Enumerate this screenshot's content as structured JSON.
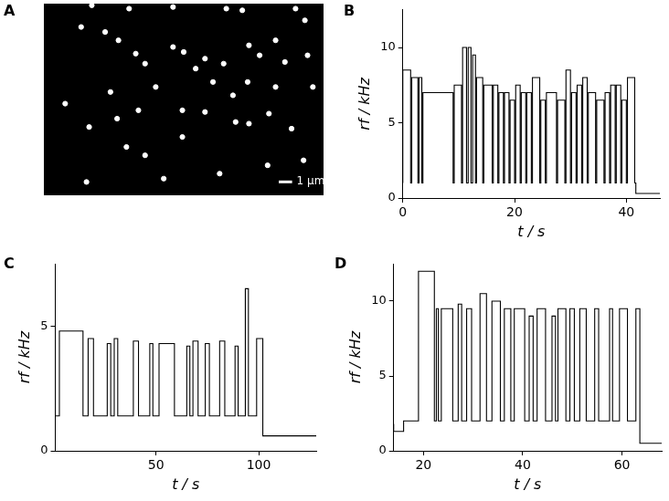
{
  "chart_data": [
    {
      "panel": "A",
      "type": "scatter",
      "color": "#ffffff",
      "marker": "circle",
      "grid": false,
      "tick_labels": false,
      "xlim": [
        0,
        21
      ],
      "ylim": [
        0,
        11.5
      ],
      "x": [
        3.6,
        6.4,
        9.7,
        13.7,
        14.9,
        18.9,
        19.6,
        2.8,
        4.6,
        5.6,
        6.9,
        7.6,
        9.7,
        10.5,
        12.1,
        13.5,
        15.4,
        16.2,
        17.4,
        18.1,
        19.8,
        20.2,
        17.4,
        15.3,
        14.2,
        12.7,
        11.4,
        8.4,
        5.0,
        1.6,
        3.4,
        5.5,
        7.1,
        10.4,
        12.1,
        14.4,
        16.9,
        15.4,
        6.2,
        7.6,
        10.4,
        9.0,
        13.2,
        19.5,
        16.8,
        3.2,
        18.6
      ],
      "values": [
        11.4,
        11.2,
        11.3,
        11.2,
        11.1,
        11.2,
        10.5,
        10.1,
        9.8,
        9.3,
        8.5,
        7.9,
        8.9,
        8.6,
        8.2,
        7.9,
        9.0,
        8.4,
        9.3,
        8.0,
        8.4,
        6.5,
        6.5,
        6.8,
        6.0,
        6.8,
        7.6,
        6.5,
        6.2,
        5.5,
        4.1,
        4.6,
        5.1,
        5.1,
        5.0,
        4.4,
        4.9,
        4.3,
        2.9,
        2.4,
        3.5,
        1.0,
        1.3,
        2.1,
        1.8,
        0.8,
        4.0
      ],
      "scale_bar": {
        "length": 1,
        "label": "1 μm"
      }
    },
    {
      "panel": "B",
      "type": "line",
      "line_style": "solid",
      "color": "#000000",
      "grid": false,
      "x_label": "t / s",
      "y_label": "rf / kHz",
      "xlim": [
        0,
        46
      ],
      "xticks": [
        0,
        20,
        40
      ],
      "ylim": [
        0,
        12.5
      ],
      "yticks": [
        0,
        5,
        10
      ],
      "x": [
        0,
        1.4,
        1.6,
        2.7,
        2.9,
        3.4,
        3.6,
        9,
        9.2,
        10.5,
        10.7,
        11.4,
        11.7,
        12.2,
        12.5,
        13,
        13.2,
        14.3,
        14.5,
        16,
        16.2,
        17,
        17.2,
        18,
        18.2,
        19,
        19.2,
        20,
        20.2,
        21,
        21.2,
        22,
        22.2,
        23,
        23.2,
        24.5,
        24.7,
        25.5,
        25.7,
        27.5,
        27.7,
        29,
        29.2,
        30,
        30.2,
        31,
        31.2,
        32,
        32.2,
        33,
        33.2,
        34.5,
        34.7,
        36,
        36.2,
        37,
        37.2,
        38,
        38.2,
        39,
        39.2,
        40,
        40.2,
        41.5,
        41.7,
        42.5,
        46
      ],
      "values": [
        1,
        8.5,
        1,
        8,
        1,
        8,
        1,
        7,
        1,
        7.5,
        1,
        10,
        1,
        10,
        1,
        9.5,
        1,
        8,
        1,
        7.5,
        1,
        7.5,
        1,
        7,
        1,
        7,
        1,
        6.5,
        1,
        7.5,
        1,
        7,
        1,
        7,
        1,
        8,
        1,
        6.5,
        1,
        7,
        1,
        6.5,
        1,
        8.5,
        1,
        7,
        1,
        7.5,
        1,
        8,
        1,
        7,
        1,
        6.5,
        1,
        7,
        1,
        7.5,
        1,
        7.5,
        1,
        6.5,
        1,
        8,
        1,
        0.3,
        0.3
      ]
    },
    {
      "panel": "C",
      "type": "line",
      "line_style": "solid",
      "color": "#000000",
      "grid": false,
      "x_label": "t / s",
      "y_label": "rf / kHz",
      "xlim": [
        1,
        128
      ],
      "xticks": [
        50,
        100
      ],
      "ylim": [
        0,
        7.5
      ],
      "yticks": [
        0,
        5
      ],
      "x": [
        1,
        3,
        14.5,
        17,
        19.6,
        26.3,
        28,
        29.7,
        31.4,
        39,
        41.5,
        47,
        48.5,
        51.5,
        59,
        65,
        66.5,
        68,
        70.5,
        74,
        76,
        81,
        83.5,
        88.5,
        90,
        93.5,
        95,
        99,
        102,
        103.5,
        128
      ],
      "values": [
        0.6,
        1.4,
        4.8,
        1.4,
        4.5,
        1.4,
        4.3,
        1.4,
        4.5,
        1.4,
        4.4,
        1.4,
        4.3,
        1.4,
        4.3,
        1.4,
        4.2,
        1.4,
        4.4,
        1.4,
        4.3,
        1.4,
        4.4,
        1.4,
        4.2,
        1.4,
        6.5,
        1.4,
        4.5,
        0.6,
        0.6
      ]
    },
    {
      "panel": "D",
      "type": "line",
      "line_style": "solid",
      "color": "#000000",
      "grid": false,
      "x_label": "t / s",
      "y_label": "rf / kHz",
      "xlim": [
        14,
        68
      ],
      "xticks": [
        20,
        40,
        60
      ],
      "ylim": [
        0,
        12.5
      ],
      "yticks": [
        0,
        5,
        10
      ],
      "x": [
        14,
        16,
        19,
        22.2,
        22.6,
        23,
        23.6,
        25.9,
        27,
        27.7,
        28.7,
        29.7,
        31.4,
        32.7,
        33.8,
        35.5,
        36.3,
        37.6,
        38.3,
        40.4,
        41.3,
        42.1,
        42.9,
        44.6,
        45.9,
        46.6,
        47.1,
        48.7,
        49.5,
        50.4,
        51.5,
        52.8,
        54.5,
        55.3,
        57.5,
        58.1,
        59.5,
        61.1,
        62.8,
        63.6,
        64.1,
        68
      ],
      "values": [
        1.8,
        1.3,
        2,
        12,
        2,
        9.5,
        2,
        9.5,
        2,
        9.8,
        2,
        9.5,
        2,
        10.5,
        2,
        10,
        2,
        9.5,
        2,
        9.5,
        2,
        9,
        2,
        9.5,
        2,
        9,
        2,
        9.5,
        2,
        9.5,
        2,
        9.5,
        2,
        9.5,
        2,
        9.5,
        2,
        9.5,
        2,
        9.5,
        0.5,
        0.5
      ]
    }
  ]
}
